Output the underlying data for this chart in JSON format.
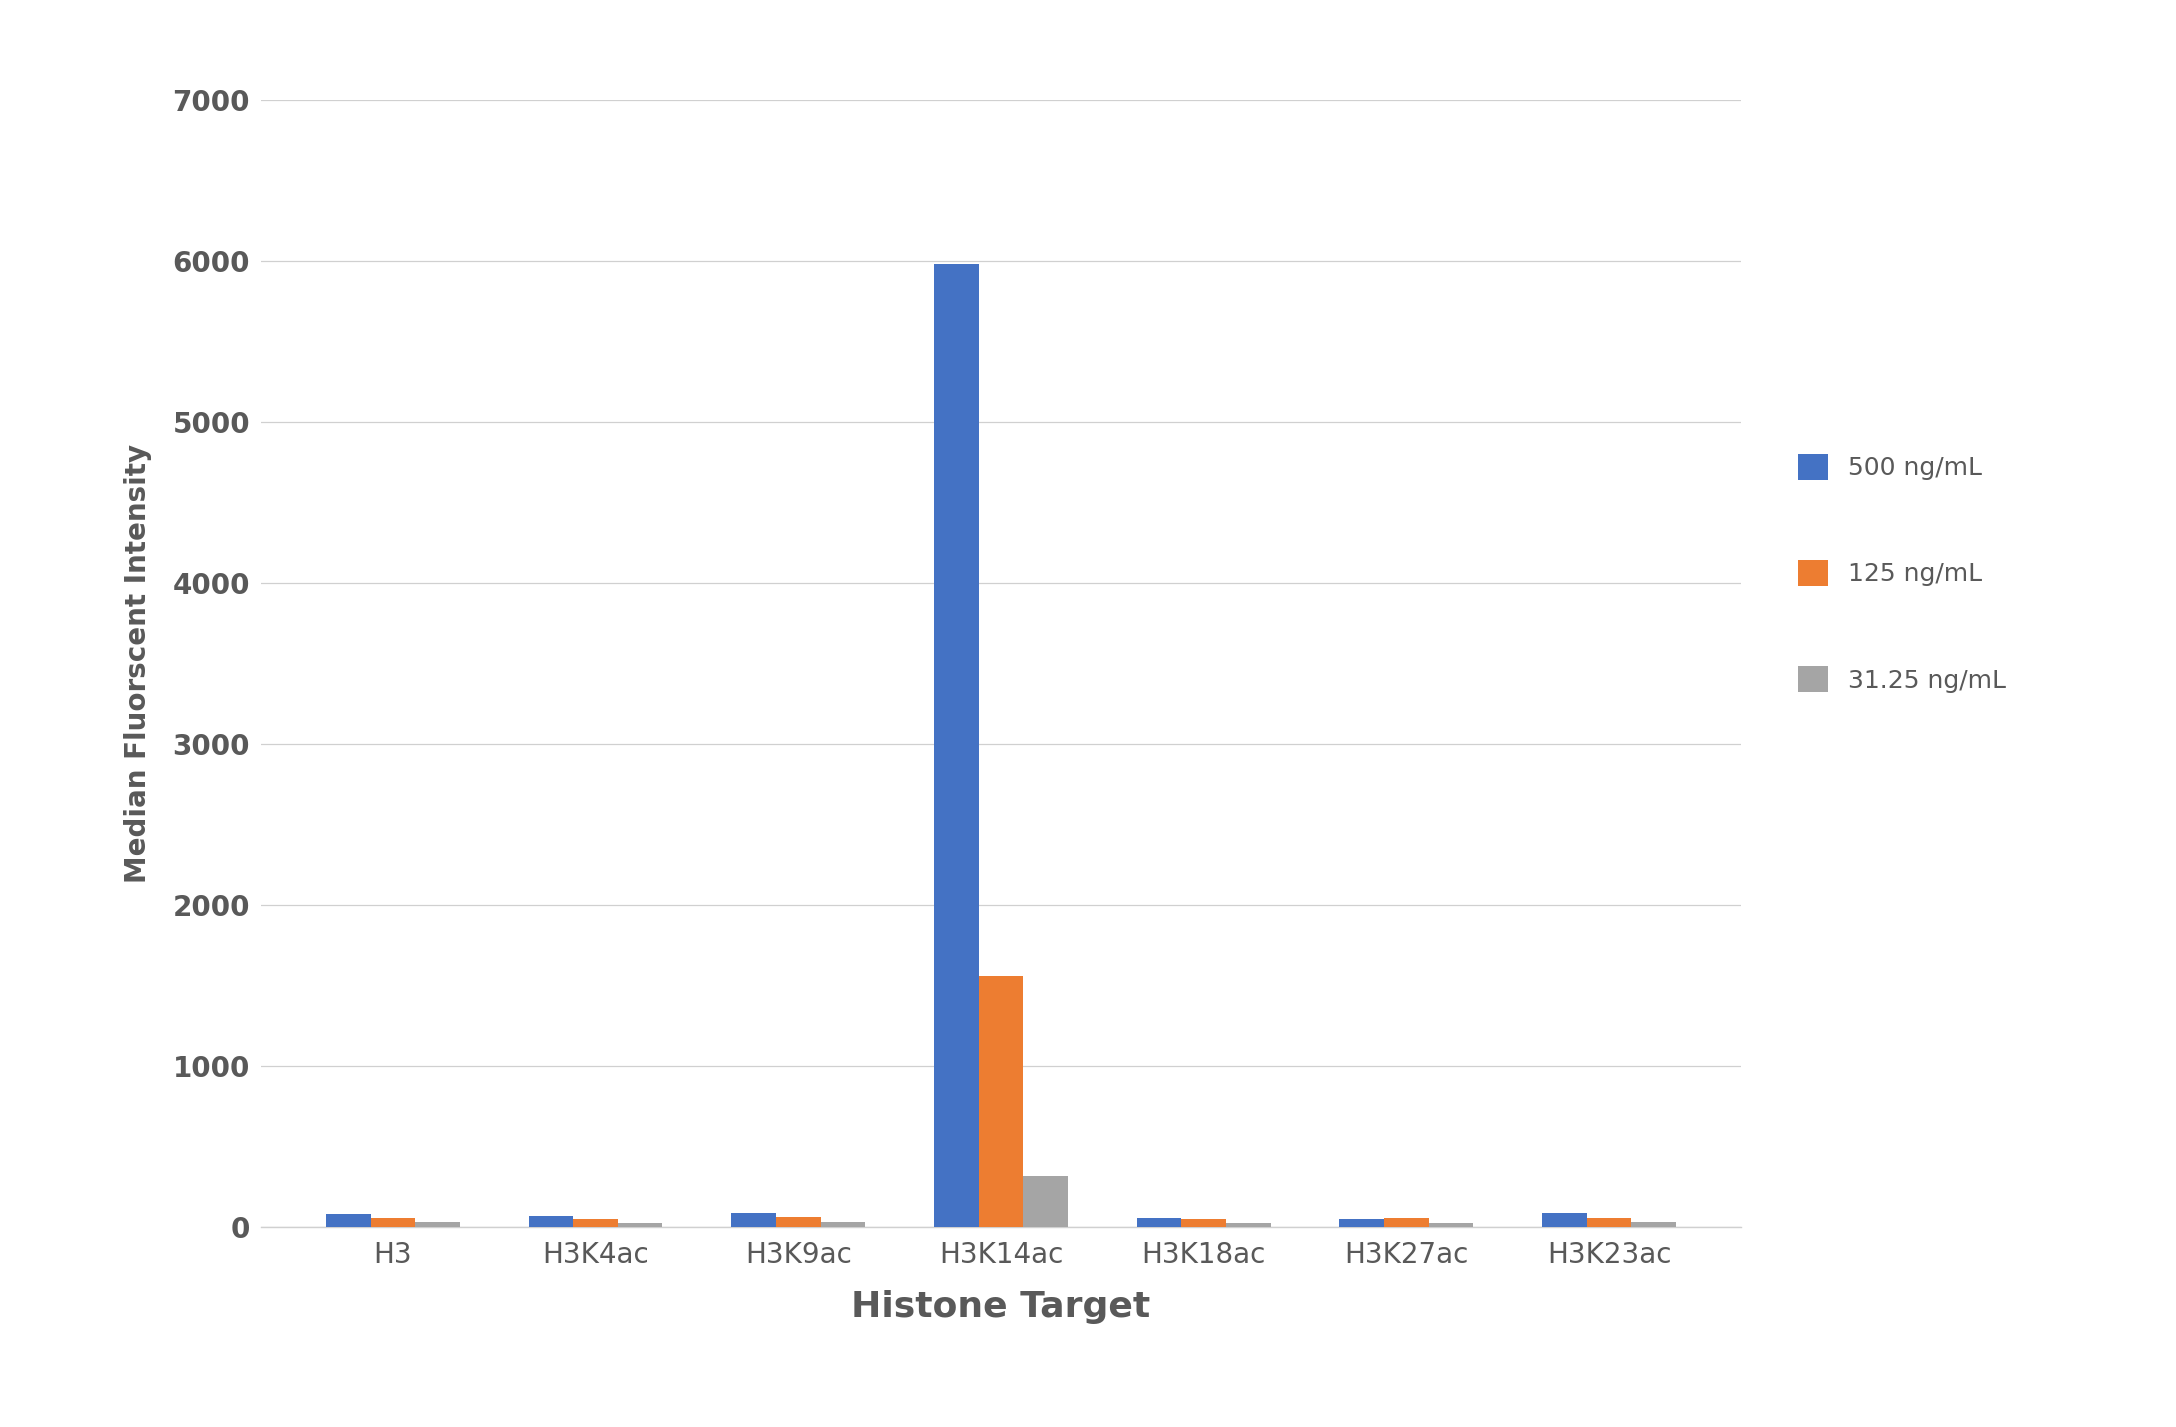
{
  "categories": [
    "H3",
    "H3K4ac",
    "H3K9ac",
    "H3K14ac",
    "H3K18ac",
    "H3K27ac",
    "H3K23ac"
  ],
  "series": [
    {
      "label": "500 ng/mL",
      "color": "#4472C4",
      "values": [
        80,
        70,
        90,
        5980,
        55,
        50,
        90
      ]
    },
    {
      "label": "125 ng/mL",
      "color": "#ED7D31",
      "values": [
        55,
        50,
        65,
        1560,
        50,
        55,
        60
      ]
    },
    {
      "label": "31.25 ng/mL",
      "color": "#A5A5A5",
      "values": [
        30,
        25,
        30,
        320,
        25,
        25,
        30
      ]
    }
  ],
  "xlabel": "Histone Target",
  "ylabel": "Median Fluorscent Intensity",
  "ylim": [
    0,
    7000
  ],
  "yticks": [
    0,
    1000,
    2000,
    3000,
    4000,
    5000,
    6000,
    7000
  ],
  "title": "",
  "bar_width": 0.22,
  "background_color": "#ffffff",
  "grid_color": "#d0d0d0",
  "xlabel_fontsize": 26,
  "ylabel_fontsize": 20,
  "tick_fontsize": 20,
  "legend_fontsize": 18,
  "text_color": "#595959"
}
